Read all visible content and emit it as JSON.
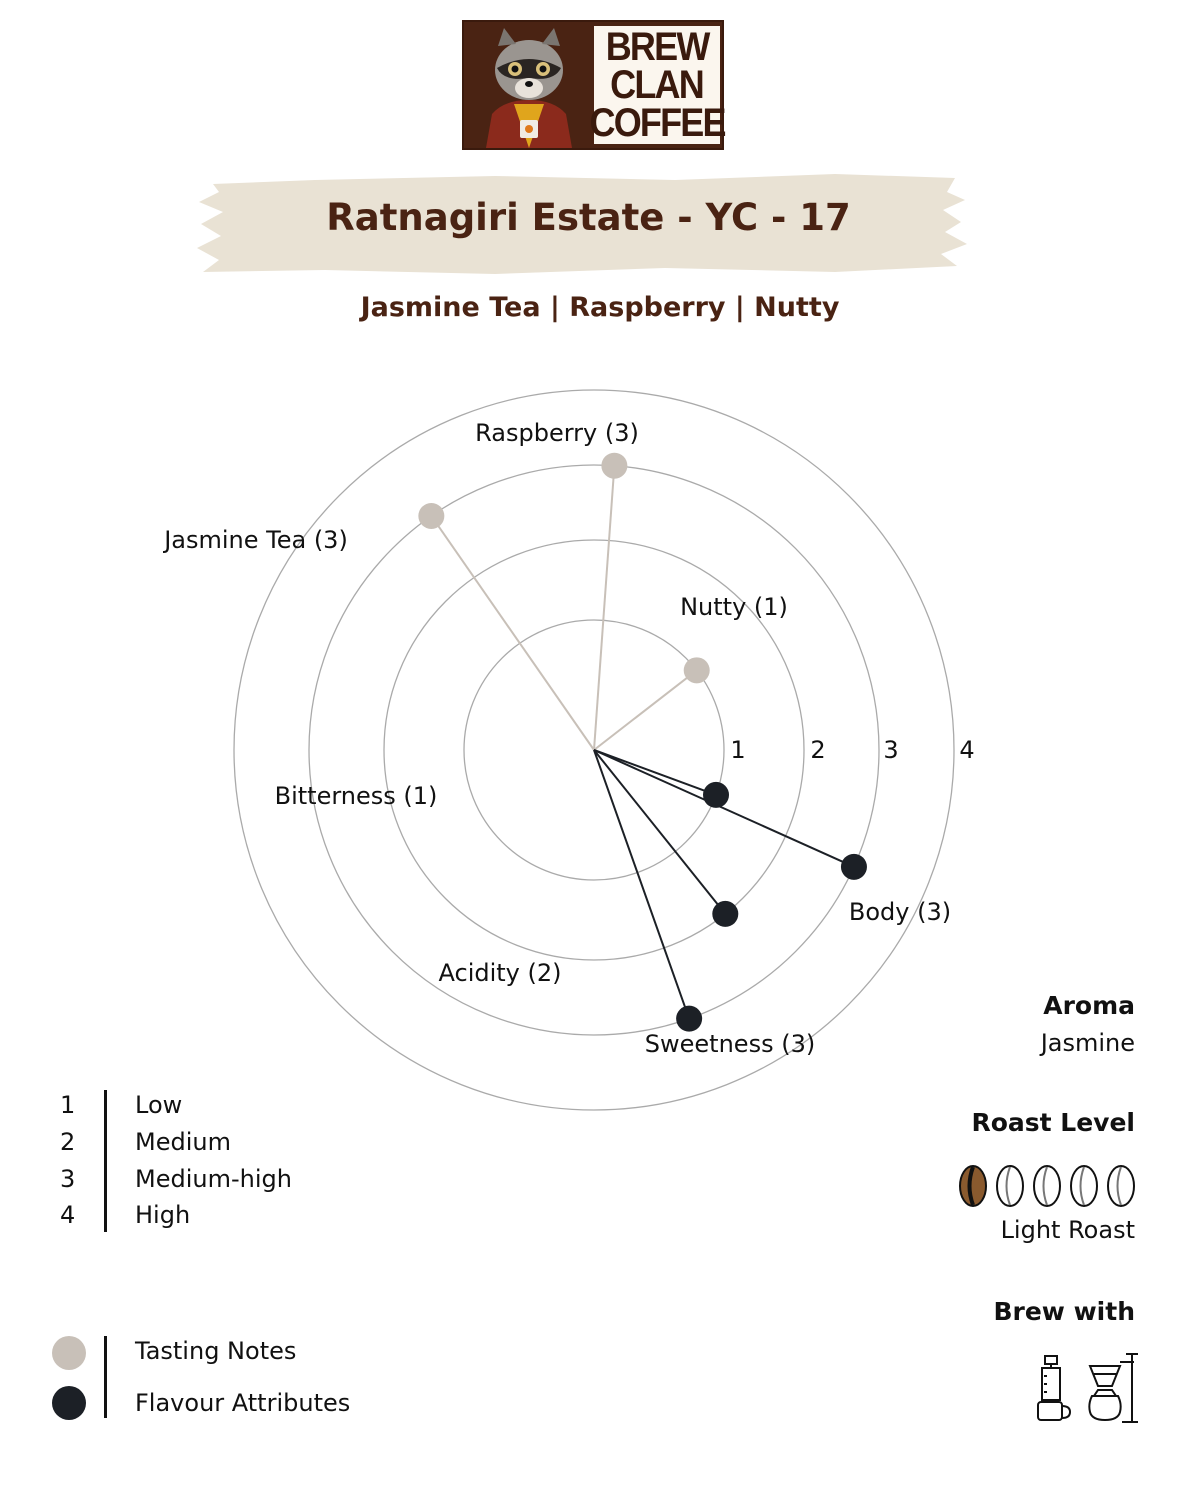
{
  "brand": {
    "logo_lines": [
      "BREW",
      "CLAN",
      "COFFEE"
    ]
  },
  "coffee": {
    "title": "Ratnagiri Estate - YC - 17",
    "notes": "Jasmine Tea | Raspberry | Nutty"
  },
  "chart_data": {
    "type": "radar",
    "radial_max": 4,
    "ring_labels": [
      "1",
      "2",
      "3",
      "4"
    ],
    "series": [
      {
        "name": "Tasting Notes",
        "color": "#c8c0b8",
        "points": [
          {
            "label": "Raspberry (3)",
            "value": 3
          },
          {
            "label": "Jasmine Tea (3)",
            "value": 3
          },
          {
            "label": "Nutty (1)",
            "value": 1
          }
        ]
      },
      {
        "name": "Flavour Attributes",
        "color": "#1c2026",
        "points": [
          {
            "label": "Bitterness (1)",
            "value": 1
          },
          {
            "label": "Acidity (2)",
            "value": 2
          },
          {
            "label": "Sweetness (3)",
            "value": 3
          },
          {
            "label": "Body (3)",
            "value": 3
          }
        ]
      }
    ]
  },
  "scale_legend": [
    {
      "num": "1",
      "text": "Low"
    },
    {
      "num": "2",
      "text": "Medium"
    },
    {
      "num": "3",
      "text": "Medium-high"
    },
    {
      "num": "4",
      "text": "High"
    }
  ],
  "series_legend": [
    {
      "text": "Tasting Notes",
      "color": "#c8c0b8"
    },
    {
      "text": "Flavour Attributes",
      "color": "#1c2026"
    }
  ],
  "aroma": {
    "heading": "Aroma",
    "value": "Jasmine"
  },
  "roast": {
    "heading": "Roast Level",
    "value": "Light Roast",
    "level": 1,
    "max": 5
  },
  "brew": {
    "heading": "Brew with",
    "icons": [
      "aeropress-icon",
      "pour-over-icon"
    ]
  }
}
